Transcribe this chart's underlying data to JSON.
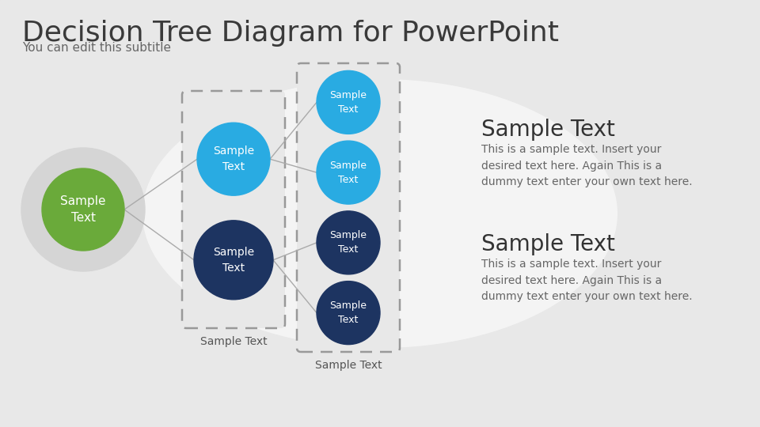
{
  "title": "Decision Tree Diagram for PowerPoint",
  "subtitle": "You can edit this subtitle",
  "root_circle_color": "#6aaa3a",
  "root_outer_color": "#d5d5d5",
  "node1_color": "#29abe2",
  "node2_color": "#1d3461",
  "leaf1_color": "#29abe2",
  "leaf2_color": "#29abe2",
  "leaf3_color": "#1d3461",
  "leaf4_color": "#1d3461",
  "box_fill": "#e8e8e8",
  "box_edge": "#999999",
  "sample_text_heading1": "Sample Text",
  "sample_text_body1": "This is a sample text. Insert your\ndesired text here. Again This is a\ndummy text enter your own text here.",
  "sample_text_heading2": "Sample Text",
  "sample_text_body2": "This is a sample text. Insert your\ndesired text here. Again This is a\ndummy text enter your own text here.",
  "box1_label": "Sample Text",
  "box2_label": "Sample Text",
  "root_label": "Sample\nText",
  "node1_label": "Sample\nText",
  "node2_label": "Sample\nText",
  "leaf1_label": "Sample\nText",
  "leaf2_label": "Sample\nText",
  "leaf3_label": "Sample\nText",
  "leaf4_label": "Sample\nText",
  "title_fontsize": 26,
  "subtitle_fontsize": 11,
  "title_color": "#3a3a3a",
  "subtitle_color": "#666666",
  "line_color": "#aaaaaa",
  "text_heading_color": "#333333",
  "text_body_color": "#666666"
}
